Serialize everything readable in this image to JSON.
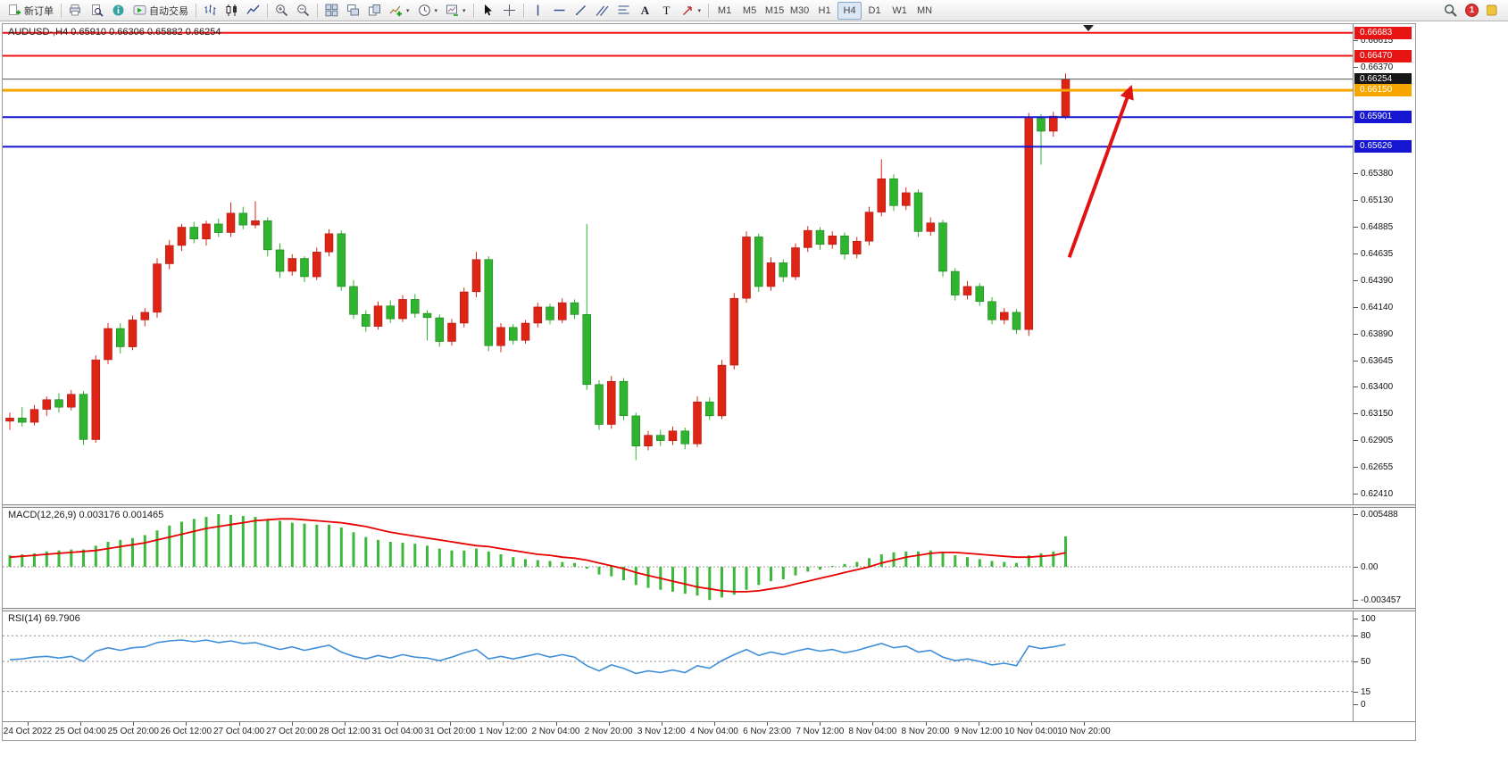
{
  "toolbar": {
    "timeframes": [
      "M1",
      "M5",
      "M15",
      "M30",
      "H1",
      "H4",
      "D1",
      "W1",
      "MN"
    ],
    "active_timeframe": "H4",
    "notification_count": "1",
    "items": [
      {
        "t": "btn",
        "name": "new-order",
        "icon": "new-order",
        "label": "新订单"
      },
      {
        "t": "sep"
      },
      {
        "t": "btn",
        "name": "print",
        "icon": "printer"
      },
      {
        "t": "btn",
        "name": "print-preview",
        "icon": "preview"
      },
      {
        "t": "btn",
        "name": "chart-info",
        "icon": "info"
      },
      {
        "t": "btn",
        "name": "auto-trading",
        "icon": "autotrade",
        "label": "自动交易"
      },
      {
        "t": "sep"
      },
      {
        "t": "btn",
        "name": "bar-chart-mode",
        "icon": "bars"
      },
      {
        "t": "btn",
        "name": "candlestick-mode",
        "icon": "candles"
      },
      {
        "t": "btn",
        "name": "line-chart-mode",
        "icon": "linechart"
      },
      {
        "t": "sep"
      },
      {
        "t": "btn",
        "name": "zoom-in",
        "icon": "zoom-in"
      },
      {
        "t": "btn",
        "name": "zoom-out",
        "icon": "zoom-out"
      },
      {
        "t": "sep"
      },
      {
        "t": "btn",
        "name": "tile-windows",
        "icon": "tiles"
      },
      {
        "t": "btn",
        "name": "arrange-windows",
        "icon": "arrange"
      },
      {
        "t": "btn",
        "name": "cascade-windows",
        "icon": "cascade"
      },
      {
        "t": "btn",
        "name": "indicators-list",
        "icon": "indicators",
        "caret": true
      },
      {
        "t": "btn",
        "name": "periods",
        "icon": "clock",
        "caret": true
      },
      {
        "t": "btn",
        "name": "templates",
        "icon": "template",
        "caret": true
      },
      {
        "t": "sep"
      },
      {
        "t": "btn",
        "name": "cursor-mode",
        "icon": "cursor"
      },
      {
        "t": "btn",
        "name": "crosshair-mode",
        "icon": "crosshair"
      },
      {
        "t": "sep"
      },
      {
        "t": "btn",
        "name": "draw-vertical-line",
        "icon": "vline"
      },
      {
        "t": "btn",
        "name": "draw-horizontal-line",
        "icon": "hline"
      },
      {
        "t": "btn",
        "name": "draw-trendline",
        "icon": "trendline"
      },
      {
        "t": "btn",
        "name": "draw-channel",
        "icon": "channel"
      },
      {
        "t": "btn",
        "name": "draw-fibonacci",
        "icon": "fibo"
      },
      {
        "t": "btn",
        "name": "draw-text",
        "icon": "text-a"
      },
      {
        "t": "btn",
        "name": "draw-label",
        "icon": "label-t"
      },
      {
        "t": "btn",
        "name": "draw-arrows",
        "icon": "shapes",
        "caret": true
      },
      {
        "t": "sep"
      },
      {
        "t": "tf-group"
      },
      {
        "t": "spacer"
      },
      {
        "t": "btn",
        "name": "search",
        "icon": "search"
      },
      {
        "t": "badge",
        "label": "1"
      },
      {
        "t": "btn",
        "name": "overflow",
        "icon": "partial"
      }
    ]
  },
  "chart": {
    "symbol_label": "AUDUSD-,H4 0.65910 0.66306 0.65882 0.66254",
    "symbol": "AUDUSD-",
    "period": "H4",
    "open": "0.65910",
    "high": "0.66306",
    "low": "0.65882",
    "close": "0.66254"
  },
  "chart_data": [
    {
      "type": "candlestick",
      "title": "AUDUSD- H4",
      "ylim": [
        0.62309,
        0.66764
      ],
      "up_color": "#de2414",
      "down_color": "#2fb42f",
      "y_ticks": [
        "0.66615",
        "0.66370",
        "0.65380",
        "0.65130",
        "0.64885",
        "0.64635",
        "0.64390",
        "0.64140",
        "0.63890",
        "0.63645",
        "0.63400",
        "0.63150",
        "0.62905",
        "0.62655",
        "0.62410"
      ],
      "price_labels": [
        {
          "value": 0.66683,
          "text": "0.66683",
          "bg": "#e81414",
          "type": "resistance"
        },
        {
          "value": 0.6647,
          "text": "0.66470",
          "bg": "#e81414",
          "type": "resistance"
        },
        {
          "value": 0.66254,
          "text": "0.66254",
          "bg": "#161616",
          "type": "current-price"
        },
        {
          "value": 0.6615,
          "text": "0.66150",
          "bg": "#f7a600",
          "type": "resistance"
        },
        {
          "value": 0.65901,
          "text": "0.65901",
          "bg": "#1616d2",
          "type": "support"
        },
        {
          "value": 0.65626,
          "text": "0.65626",
          "bg": "#1616d2",
          "type": "support"
        }
      ],
      "hlines": [
        {
          "value": 0.66683,
          "color": "#f01414",
          "width": 2
        },
        {
          "value": 0.6647,
          "color": "#f01414",
          "width": 2
        },
        {
          "value": 0.66254,
          "color": "#555555",
          "width": 1
        },
        {
          "value": 0.6615,
          "color": "#f7a600",
          "width": 3
        },
        {
          "value": 0.65901,
          "color": "#1616d2",
          "width": 2
        },
        {
          "value": 0.65626,
          "color": "#1616d2",
          "width": 2
        }
      ],
      "arrow": {
        "x1_bar": 86.3,
        "price1": 0.646,
        "x2_bar": 91.3,
        "price2": 0.6617,
        "color": "#e01212",
        "width": 4
      },
      "candles": [
        [
          0.6308,
          0.6316,
          0.63,
          0.6311
        ],
        [
          0.6311,
          0.6321,
          0.6303,
          0.6307
        ],
        [
          0.6307,
          0.6323,
          0.6304,
          0.6319
        ],
        [
          0.6319,
          0.6331,
          0.6313,
          0.6328
        ],
        [
          0.6328,
          0.6334,
          0.6316,
          0.6321
        ],
        [
          0.6321,
          0.6337,
          0.6318,
          0.6333
        ],
        [
          0.6333,
          0.6336,
          0.6286,
          0.6291
        ],
        [
          0.6291,
          0.6369,
          0.6288,
          0.6365
        ],
        [
          0.6365,
          0.6399,
          0.6361,
          0.6394
        ],
        [
          0.6394,
          0.6399,
          0.6371,
          0.6377
        ],
        [
          0.6377,
          0.6406,
          0.6374,
          0.6402
        ],
        [
          0.6402,
          0.6413,
          0.6396,
          0.6409
        ],
        [
          0.6409,
          0.6459,
          0.6404,
          0.6454
        ],
        [
          0.6454,
          0.6476,
          0.6449,
          0.6471
        ],
        [
          0.6471,
          0.6491,
          0.6466,
          0.6488
        ],
        [
          0.6488,
          0.6493,
          0.6473,
          0.6477
        ],
        [
          0.6477,
          0.6494,
          0.6471,
          0.6491
        ],
        [
          0.6491,
          0.6496,
          0.6479,
          0.6483
        ],
        [
          0.6483,
          0.6511,
          0.6479,
          0.6501
        ],
        [
          0.6501,
          0.6507,
          0.6486,
          0.649
        ],
        [
          0.649,
          0.6512,
          0.6487,
          0.6494
        ],
        [
          0.6494,
          0.6497,
          0.6461,
          0.6467
        ],
        [
          0.6467,
          0.6473,
          0.6441,
          0.6447
        ],
        [
          0.6447,
          0.6463,
          0.6443,
          0.6459
        ],
        [
          0.6459,
          0.6461,
          0.6437,
          0.6442
        ],
        [
          0.6442,
          0.6469,
          0.6439,
          0.6465
        ],
        [
          0.6465,
          0.6486,
          0.6461,
          0.6482
        ],
        [
          0.6482,
          0.6485,
          0.6429,
          0.6433
        ],
        [
          0.6433,
          0.6439,
          0.6403,
          0.6407
        ],
        [
          0.6407,
          0.6411,
          0.6391,
          0.6396
        ],
        [
          0.6396,
          0.6419,
          0.6393,
          0.6415
        ],
        [
          0.6415,
          0.642,
          0.6399,
          0.6403
        ],
        [
          0.6403,
          0.6425,
          0.64,
          0.6421
        ],
        [
          0.6421,
          0.6426,
          0.6404,
          0.6408
        ],
        [
          0.6408,
          0.6411,
          0.6383,
          0.6404
        ],
        [
          0.6404,
          0.6407,
          0.6377,
          0.6382
        ],
        [
          0.6382,
          0.6403,
          0.6378,
          0.6399
        ],
        [
          0.6399,
          0.6432,
          0.6395,
          0.6428
        ],
        [
          0.6428,
          0.6465,
          0.6423,
          0.6458
        ],
        [
          0.6458,
          0.6461,
          0.6373,
          0.6378
        ],
        [
          0.6378,
          0.6399,
          0.6372,
          0.6395
        ],
        [
          0.6395,
          0.6398,
          0.6379,
          0.6383
        ],
        [
          0.6383,
          0.6402,
          0.638,
          0.6399
        ],
        [
          0.6399,
          0.6418,
          0.6395,
          0.6414
        ],
        [
          0.6414,
          0.6417,
          0.6398,
          0.6402
        ],
        [
          0.6402,
          0.6422,
          0.6399,
          0.6418
        ],
        [
          0.6418,
          0.6421,
          0.6403,
          0.6407
        ],
        [
          0.6407,
          0.6491,
          0.6337,
          0.6342
        ],
        [
          0.6342,
          0.6346,
          0.63,
          0.6305
        ],
        [
          0.6305,
          0.635,
          0.6301,
          0.6345
        ],
        [
          0.6345,
          0.6348,
          0.6309,
          0.6313
        ],
        [
          0.6313,
          0.6316,
          0.6272,
          0.6285
        ],
        [
          0.6285,
          0.6299,
          0.6281,
          0.6295
        ],
        [
          0.6295,
          0.63,
          0.6285,
          0.629
        ],
        [
          0.629,
          0.6303,
          0.6286,
          0.6299
        ],
        [
          0.6299,
          0.6302,
          0.6282,
          0.6287
        ],
        [
          0.6287,
          0.6331,
          0.6284,
          0.6326
        ],
        [
          0.6326,
          0.633,
          0.6309,
          0.6313
        ],
        [
          0.6313,
          0.6365,
          0.631,
          0.636
        ],
        [
          0.636,
          0.6427,
          0.6356,
          0.6422
        ],
        [
          0.6422,
          0.6484,
          0.6418,
          0.6479
        ],
        [
          0.6479,
          0.6482,
          0.6428,
          0.6433
        ],
        [
          0.6433,
          0.646,
          0.6429,
          0.6455
        ],
        [
          0.6455,
          0.6458,
          0.6437,
          0.6442
        ],
        [
          0.6442,
          0.6473,
          0.6439,
          0.6469
        ],
        [
          0.6469,
          0.6489,
          0.6465,
          0.6485
        ],
        [
          0.6485,
          0.6488,
          0.6467,
          0.6472
        ],
        [
          0.6472,
          0.6484,
          0.6468,
          0.648
        ],
        [
          0.648,
          0.6483,
          0.6458,
          0.6463
        ],
        [
          0.6463,
          0.6479,
          0.6459,
          0.6475
        ],
        [
          0.6475,
          0.6507,
          0.6471,
          0.6502
        ],
        [
          0.6502,
          0.6551,
          0.6498,
          0.6533
        ],
        [
          0.6533,
          0.6537,
          0.6503,
          0.6508
        ],
        [
          0.6508,
          0.6525,
          0.6504,
          0.652
        ],
        [
          0.652,
          0.6523,
          0.6479,
          0.6484
        ],
        [
          0.6484,
          0.6497,
          0.648,
          0.6492
        ],
        [
          0.6492,
          0.6495,
          0.6442,
          0.6447
        ],
        [
          0.6447,
          0.645,
          0.642,
          0.6425
        ],
        [
          0.6425,
          0.6438,
          0.6421,
          0.6433
        ],
        [
          0.6433,
          0.6436,
          0.6415,
          0.6419
        ],
        [
          0.6419,
          0.6423,
          0.6398,
          0.6402
        ],
        [
          0.6402,
          0.6413,
          0.6398,
          0.6409
        ],
        [
          0.6409,
          0.6412,
          0.6389,
          0.6393
        ],
        [
          0.6393,
          0.6594,
          0.6387,
          0.6589
        ],
        [
          0.6589,
          0.6593,
          0.6546,
          0.6577
        ],
        [
          0.6577,
          0.6595,
          0.6572,
          0.6591
        ],
        [
          0.6591,
          0.66306,
          0.65882,
          0.66254
        ]
      ]
    },
    {
      "type": "bar",
      "name": "MACD",
      "label": "MACD(12,26,9) 0.003176 0.001465",
      "main_value": 0.003176,
      "signal_value": 0.001465,
      "ylim": [
        -0.00428,
        0.00614
      ],
      "y_ticks": [
        "0.005488",
        "0.00",
        "-0.003457"
      ],
      "histogram_color": "#3cb83c",
      "signal_color": "#e80000",
      "histogram": [
        0.0012,
        0.0013,
        0.0014,
        0.0016,
        0.0017,
        0.0018,
        0.0018,
        0.0022,
        0.0026,
        0.0028,
        0.003,
        0.0033,
        0.0038,
        0.0043,
        0.0047,
        0.005,
        0.0052,
        0.005488,
        0.0054,
        0.0053,
        0.0052,
        0.005,
        0.0048,
        0.0046,
        0.0045,
        0.0044,
        0.0044,
        0.0041,
        0.0036,
        0.0031,
        0.0028,
        0.0026,
        0.0025,
        0.0024,
        0.0022,
        0.0019,
        0.0017,
        0.0017,
        0.0019,
        0.0016,
        0.0013,
        0.001,
        0.0008,
        0.0007,
        0.0006,
        0.0005,
        0.0004,
        -0.0002,
        -0.0008,
        -0.001,
        -0.0014,
        -0.0019,
        -0.0022,
        -0.0024,
        -0.0026,
        -0.0028,
        -0.003,
        -0.003457,
        -0.0032,
        -0.0029,
        -0.0024,
        -0.0019,
        -0.0015,
        -0.0013,
        -0.0009,
        -0.0005,
        -0.0003,
        0.0001,
        0.0003,
        0.0005,
        0.0009,
        0.0013,
        0.0015,
        0.0016,
        0.0016,
        0.0017,
        0.0015,
        0.0012,
        0.001,
        0.0008,
        0.0006,
        0.0005,
        0.0004,
        0.0012,
        0.0014,
        0.0016,
        0.003176
      ],
      "signal": [
        0.001,
        0.0011,
        0.0012,
        0.0013,
        0.0014,
        0.0015,
        0.0016,
        0.0017,
        0.0019,
        0.0021,
        0.0023,
        0.0025,
        0.0028,
        0.0031,
        0.0034,
        0.0037,
        0.004,
        0.0042,
        0.0044,
        0.0046,
        0.0048,
        0.0049,
        0.005,
        0.005,
        0.0049,
        0.0048,
        0.0047,
        0.0046,
        0.0044,
        0.0042,
        0.0039,
        0.0036,
        0.0034,
        0.0032,
        0.003,
        0.0028,
        0.0026,
        0.0024,
        0.0022,
        0.0021,
        0.0019,
        0.0017,
        0.0015,
        0.0013,
        0.0012,
        0.001,
        0.0009,
        0.0007,
        0.0004,
        0.0001,
        -0.0002,
        -0.0006,
        -0.0009,
        -0.0012,
        -0.0015,
        -0.0018,
        -0.0021,
        -0.0023,
        -0.0025,
        -0.0026,
        -0.0026,
        -0.0025,
        -0.0023,
        -0.0021,
        -0.0018,
        -0.0015,
        -0.0012,
        -0.0009,
        -0.0006,
        -0.0003,
        0.0,
        0.0004,
        0.0007,
        0.001,
        0.0012,
        0.0014,
        0.0015,
        0.0015,
        0.0014,
        0.0013,
        0.0012,
        0.0011,
        0.001,
        0.001,
        0.0011,
        0.0012,
        0.001465
      ]
    },
    {
      "type": "line",
      "name": "RSI",
      "label": "RSI(14) 69.7906",
      "value": 69.7906,
      "ylim": [
        0,
        100
      ],
      "levels": [
        80,
        50,
        15
      ],
      "y_ticks": [
        "100",
        "80",
        "50",
        "15",
        "0"
      ],
      "color": "#3f8fd8",
      "values": [
        52,
        53,
        55,
        56,
        54,
        56,
        50,
        62,
        66,
        63,
        66,
        67,
        72,
        74,
        75,
        73,
        75,
        72,
        74,
        71,
        72,
        68,
        64,
        67,
        63,
        66,
        69,
        61,
        56,
        53,
        57,
        54,
        58,
        55,
        54,
        51,
        55,
        60,
        64,
        53,
        56,
        53,
        56,
        59,
        55,
        58,
        55,
        45,
        39,
        46,
        42,
        36,
        39,
        37,
        40,
        37,
        45,
        42,
        51,
        58,
        64,
        57,
        61,
        58,
        62,
        65,
        62,
        64,
        60,
        63,
        67,
        71,
        66,
        68,
        61,
        63,
        55,
        51,
        53,
        50,
        46,
        48,
        45,
        68,
        65,
        67,
        69.7906
      ]
    }
  ],
  "time_axis": {
    "labels": [
      "24 Oct 2022",
      "25 Oct 04:00",
      "25 Oct 20:00",
      "26 Oct 12:00",
      "27 Oct 04:00",
      "27 Oct 20:00",
      "28 Oct 12:00",
      "31 Oct 04:00",
      "31 Oct 20:00",
      "1 Nov 12:00",
      "2 Nov 04:00",
      "2 Nov 20:00",
      "3 Nov 12:00",
      "4 Nov 04:00",
      "6 Nov 23:00",
      "7 Nov 12:00",
      "8 Nov 04:00",
      "8 Nov 20:00",
      "9 Nov 12:00",
      "10 Nov 04:00",
      "10 Nov 20:00"
    ]
  }
}
